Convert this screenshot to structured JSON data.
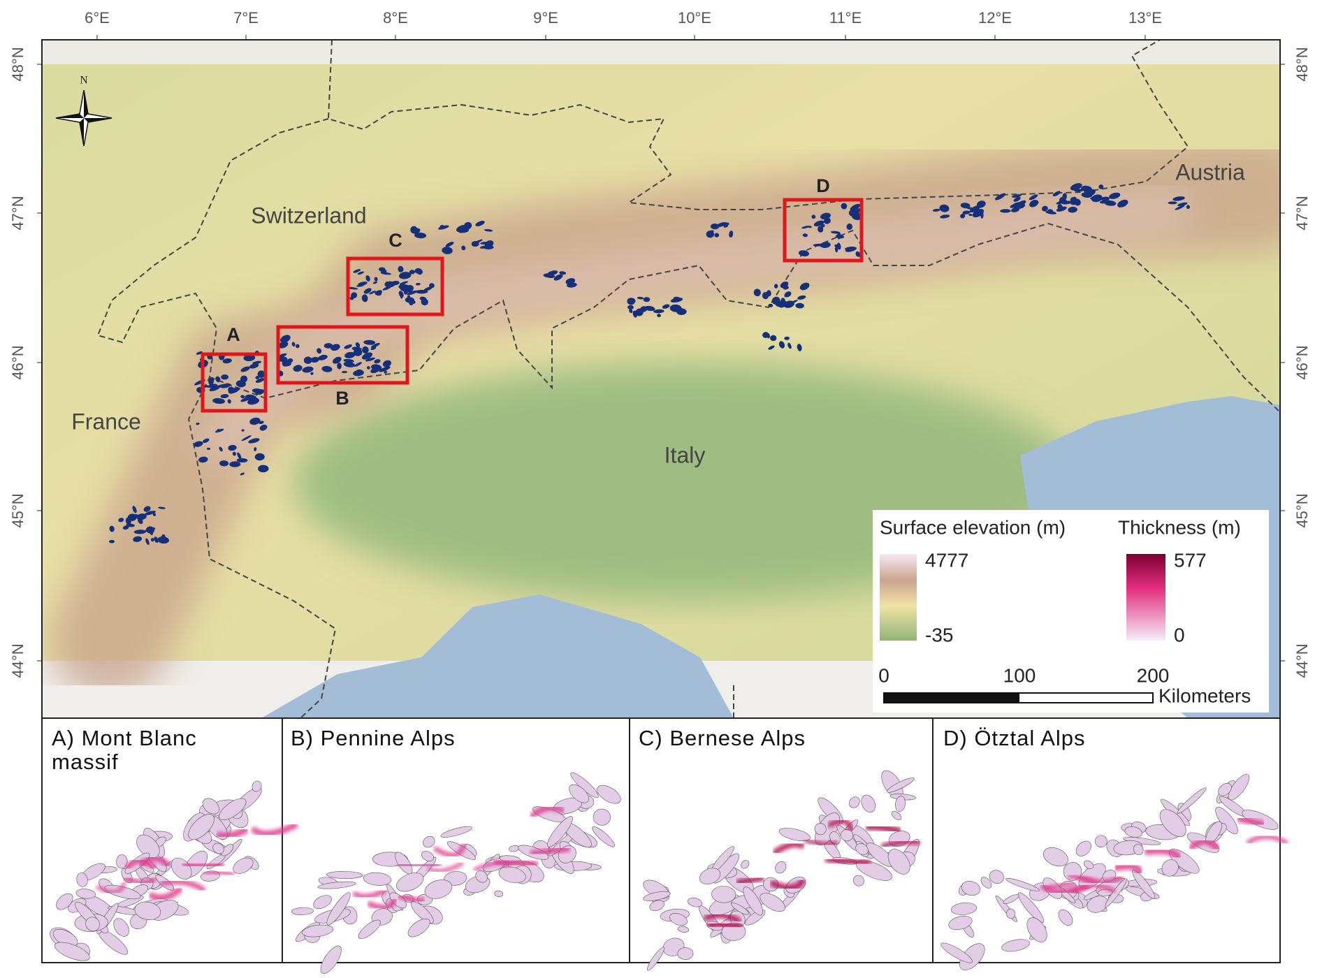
{
  "map": {
    "lon_ticks": [
      "6°E",
      "7°E",
      "8°E",
      "9°E",
      "10°E",
      "11°E",
      "12°E",
      "13°E"
    ],
    "lat_ticks": [
      "48°N",
      "47°N",
      "46°N",
      "45°N",
      "44°N"
    ],
    "north_label": "N",
    "countries": [
      "Switzerland",
      "France",
      "Italy",
      "Austria"
    ],
    "regions": [
      "A",
      "B",
      "C",
      "D"
    ]
  },
  "legend": {
    "elevation_title": "Surface elevation (m)",
    "elevation_max": 4777,
    "elevation_min": -35,
    "thickness_title": "Thickness (m)",
    "thickness_max": 577,
    "thickness_min": 0
  },
  "scale_bar": {
    "ticks": [
      0,
      100,
      200
    ],
    "unit": "Kilometers"
  },
  "panels": [
    "A) Mont Blanc massif",
    "B) Pennine Alps",
    "C) Bernese Alps",
    "D) Ötztal Alps"
  ]
}
